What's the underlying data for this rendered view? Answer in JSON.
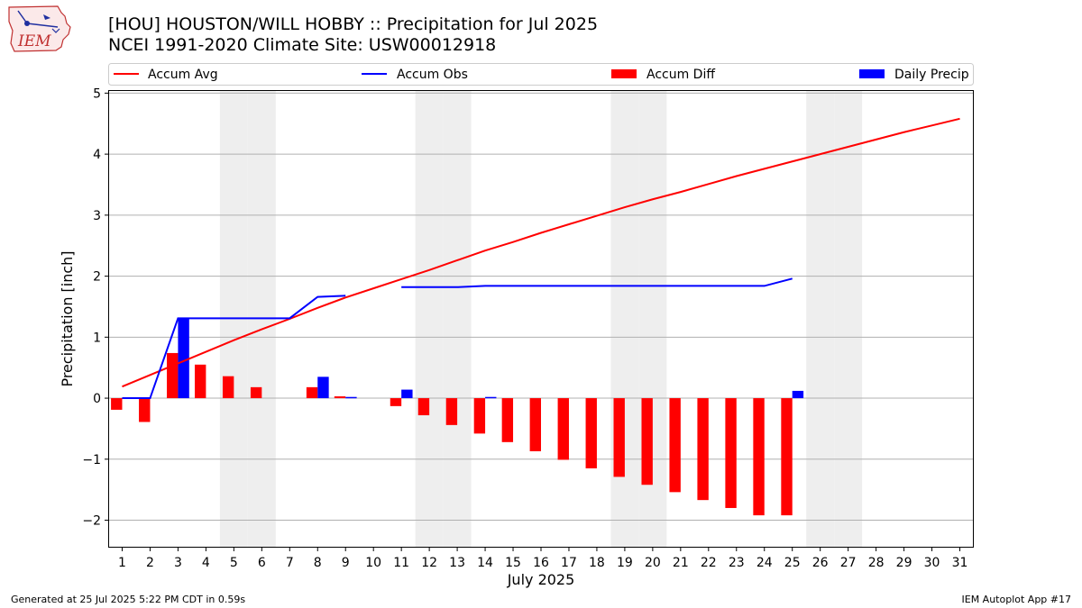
{
  "header": {
    "title": "[HOU] HOUSTON/WILL HOBBY :: Precipitation for Jul 2025",
    "subtitle": "NCEI 1991-2020 Climate Site: USW00012918"
  },
  "logo": {
    "icon": "iem-logo-icon",
    "text": "IEM"
  },
  "footer": {
    "generated": "Generated at 25 Jul 2025 5:22 PM CDT in 0.59s",
    "app": "IEM Autoplot App #17"
  },
  "colors": {
    "accum_avg": "#ff0000",
    "accum_obs": "#0000ff",
    "accum_diff": "#ff0000",
    "daily_precip": "#0000ff",
    "weekend_shade": "#eeeeee",
    "grid": "#b0b0b0"
  },
  "chart_data": {
    "type": "bar",
    "xlabel": "July 2025",
    "ylabel": "Precipitation [inch]",
    "xlim": [
      0.5,
      31.5
    ],
    "ylim": [
      -2.45,
      5.05
    ],
    "yticks": [
      -2,
      -1,
      0,
      1,
      2,
      3,
      4,
      5
    ],
    "ytick_labels": [
      "−2",
      "−1",
      "0",
      "1",
      "2",
      "3",
      "4",
      "5"
    ],
    "days": [
      1,
      2,
      3,
      4,
      5,
      6,
      7,
      8,
      9,
      10,
      11,
      12,
      13,
      14,
      15,
      16,
      17,
      18,
      19,
      20,
      21,
      22,
      23,
      24,
      25,
      26,
      27,
      28,
      29,
      30,
      31
    ],
    "grid": "horizontal",
    "legend_placement": "top",
    "weekend_days": [
      5,
      6,
      12,
      13,
      19,
      20,
      26,
      27
    ],
    "series": [
      {
        "name": "Accum Avg",
        "type": "line",
        "values": [
          0.19,
          0.38,
          0.57,
          0.76,
          0.95,
          1.13,
          1.3,
          1.48,
          1.65,
          1.8,
          1.95,
          2.1,
          2.26,
          2.42,
          2.56,
          2.71,
          2.85,
          2.99,
          3.13,
          3.26,
          3.38,
          3.51,
          3.64,
          3.76,
          3.88,
          4.0,
          4.12,
          4.24,
          4.36,
          4.47,
          4.58
        ]
      },
      {
        "name": "Accum Obs",
        "type": "line",
        "segments": [
          {
            "days": [
              1,
              2,
              3,
              4,
              5,
              6,
              7,
              8,
              9
            ],
            "values": [
              0.0,
              0.0,
              1.31,
              1.31,
              1.31,
              1.31,
              1.31,
              1.66,
              1.68
            ]
          },
          {
            "days": [
              11,
              12,
              13,
              14,
              15,
              16,
              17,
              18,
              19,
              20,
              21,
              22,
              23,
              24,
              25
            ],
            "values": [
              1.82,
              1.82,
              1.82,
              1.84,
              1.84,
              1.84,
              1.84,
              1.84,
              1.84,
              1.84,
              1.84,
              1.84,
              1.84,
              1.84,
              1.96
            ]
          }
        ]
      },
      {
        "name": "Accum Diff",
        "type": "bar",
        "days": [
          1,
          2,
          3,
          4,
          5,
          6,
          8,
          9,
          11,
          12,
          13,
          14,
          15,
          16,
          17,
          18,
          19,
          20,
          21,
          22,
          23,
          24,
          25
        ],
        "values": [
          -0.19,
          -0.39,
          0.74,
          0.55,
          0.36,
          0.18,
          0.18,
          0.03,
          -0.13,
          -0.28,
          -0.44,
          -0.58,
          -0.72,
          -0.87,
          -1.01,
          -1.15,
          -1.29,
          -1.42,
          -1.54,
          -1.67,
          -1.8,
          -1.92,
          -1.92
        ]
      },
      {
        "name": "Daily Precip",
        "type": "bar",
        "days": [
          3,
          8,
          9,
          11,
          14,
          25
        ],
        "values": [
          1.31,
          0.35,
          0.02,
          0.14,
          0.02,
          0.12
        ]
      }
    ]
  }
}
